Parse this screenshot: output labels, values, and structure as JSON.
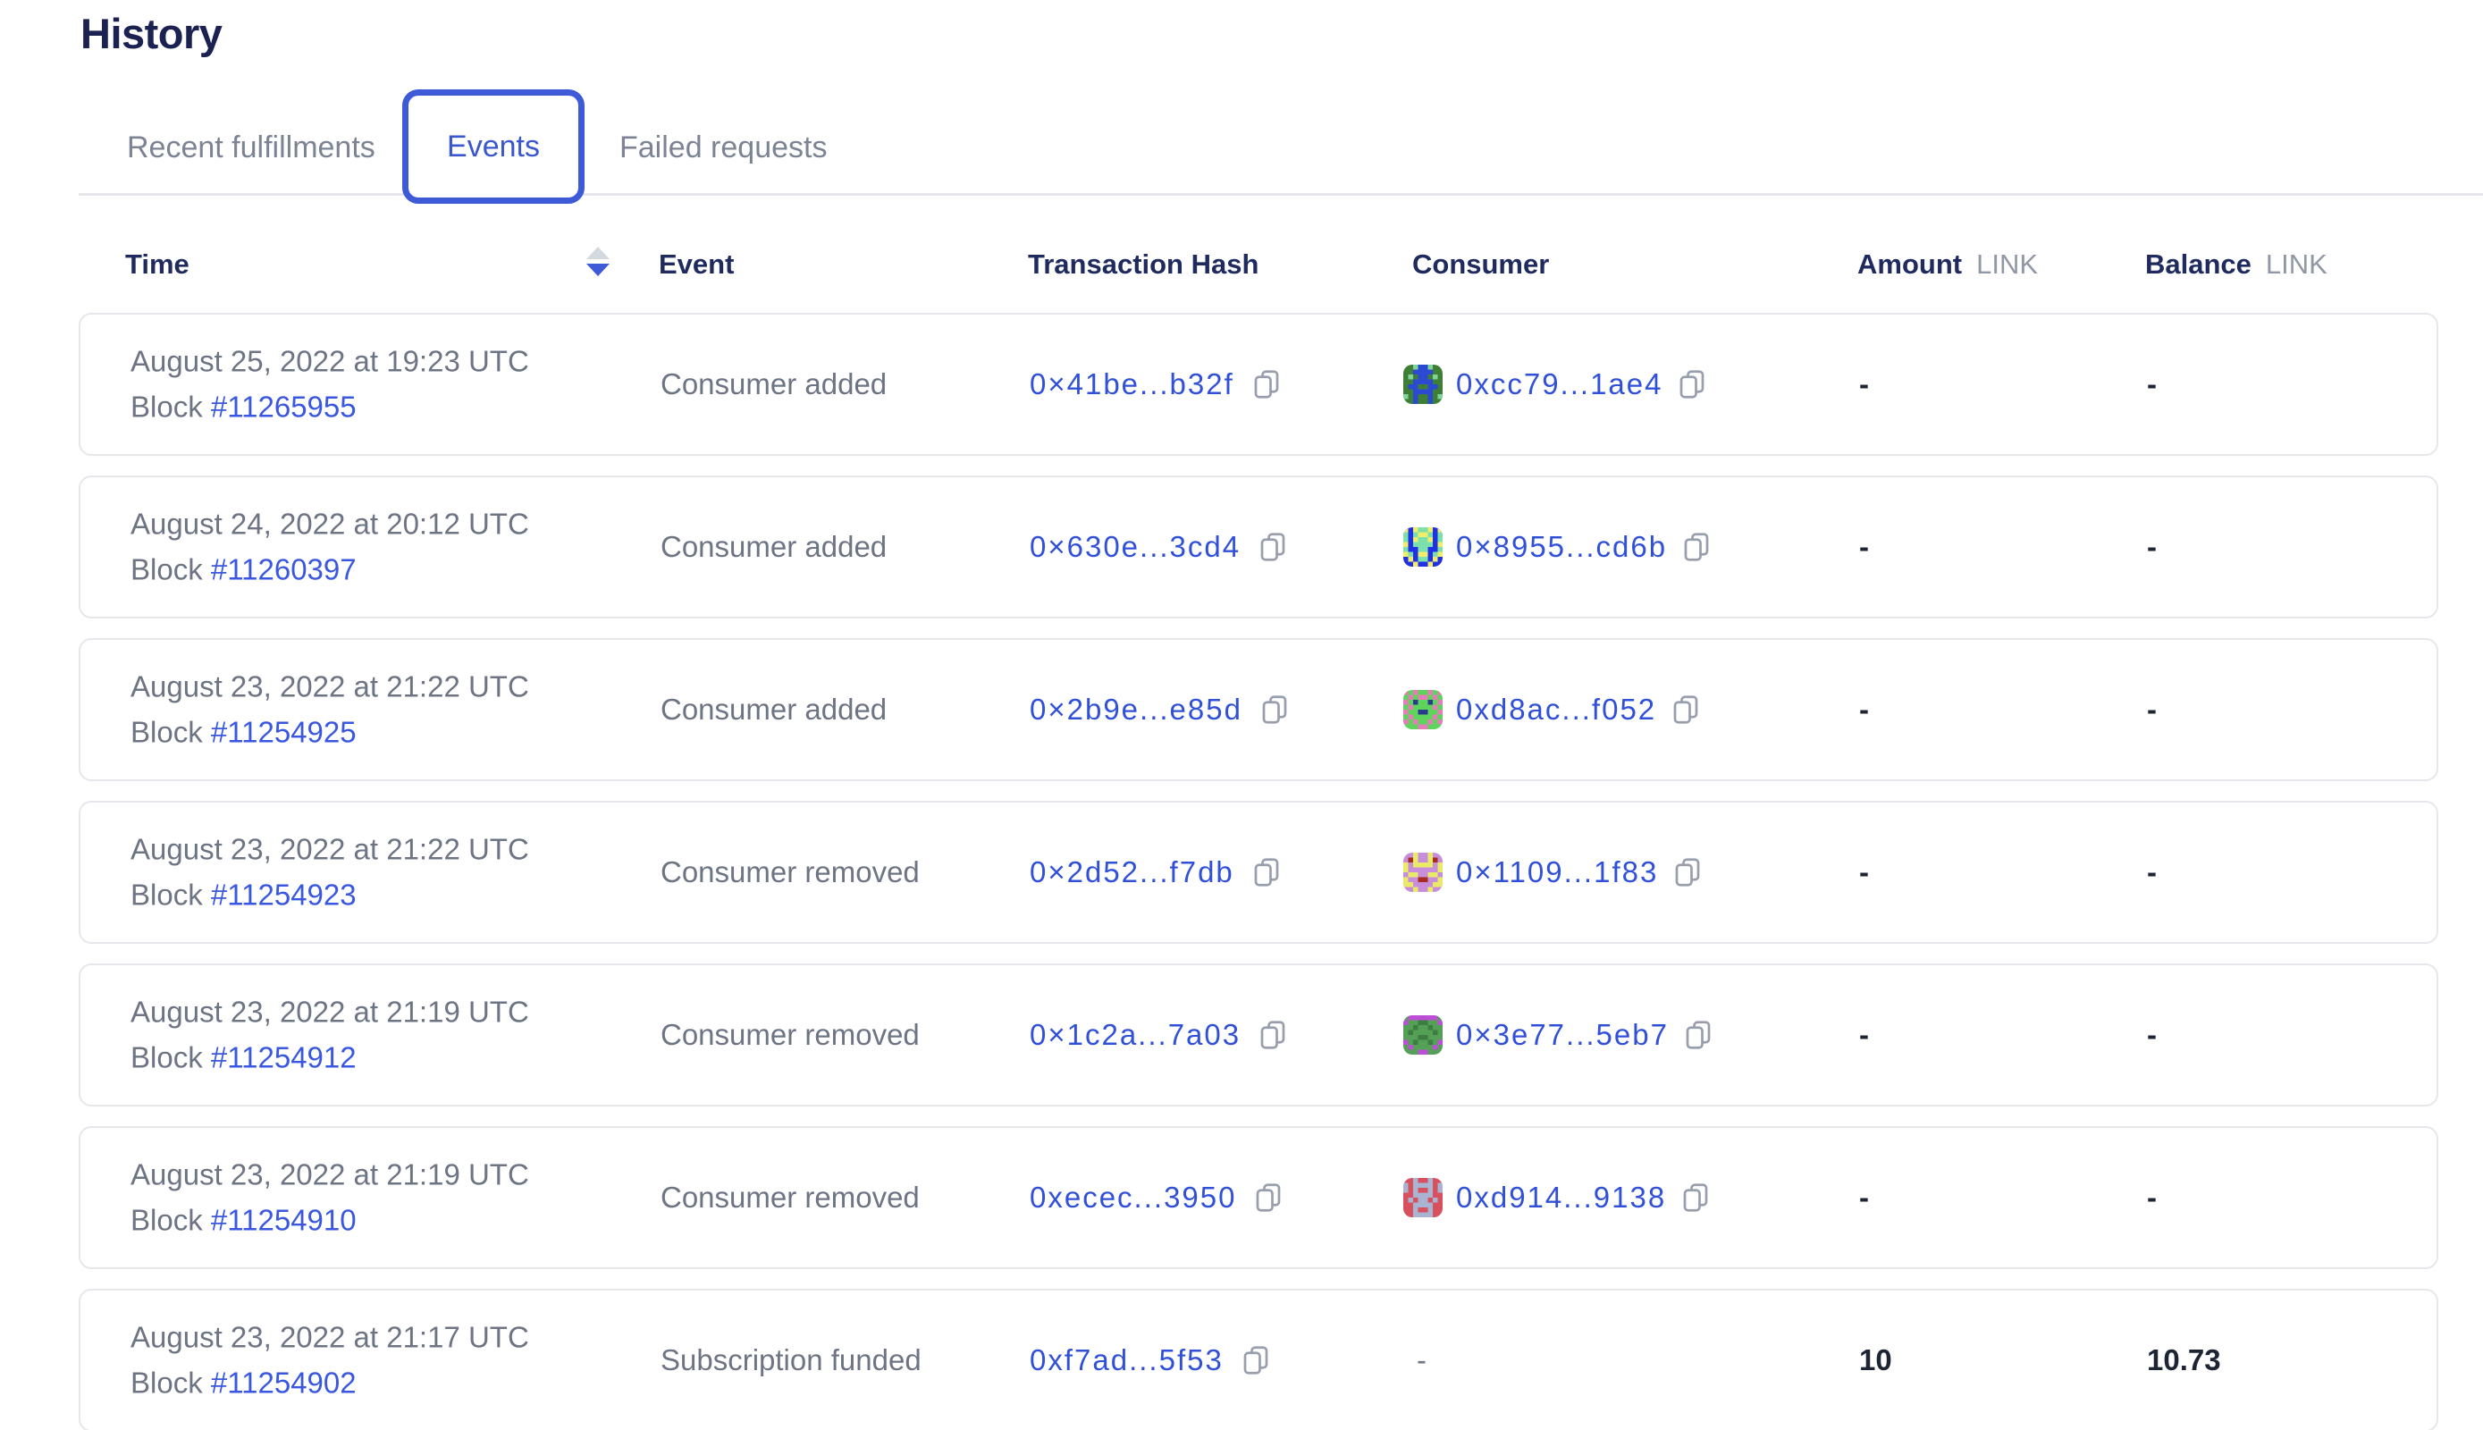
{
  "page": {
    "title": "History"
  },
  "tabs": [
    {
      "label": "Recent fulfillments",
      "active": false
    },
    {
      "label": "Events",
      "active": true
    },
    {
      "label": "Failed requests",
      "active": false
    }
  ],
  "colors": {
    "accent_blue": "#3d5bd7",
    "link_blue": "#3150d9",
    "heading_navy": "#1b2151",
    "body_gray": "#6d7483",
    "sort_active": "#3d5bd7",
    "sort_inactive": "#d4d8df"
  },
  "table": {
    "columns": {
      "time": "Time",
      "event": "Event",
      "hash": "Transaction Hash",
      "consumer": "Consumer",
      "amount": "Amount",
      "amount_unit": "LINK",
      "balance": "Balance",
      "balance_unit": "LINK"
    },
    "sort": {
      "column": "Time",
      "direction": "desc"
    },
    "rows": [
      {
        "date": "August 25, 2022 at 19:23 UTC",
        "block_label": "Block",
        "block": "#11265955",
        "event": "Consumer added",
        "tx_hash": "0×41be...b32f",
        "consumer": {
          "address": "0xcc79...1ae4",
          "avatar": {
            "bg": "#3e7e35",
            "colors": [
              "#2b49d2",
              "#7fd49b"
            ],
            "grid": [
              "00211200",
              "00111100",
              "02011020",
              "00111100",
              "01100110",
              "00111100",
              "20100102",
              "00100100"
            ]
          }
        },
        "amount": "-",
        "balance": "-"
      },
      {
        "date": "August 24, 2022 at 20:12 UTC",
        "block_label": "Block",
        "block": "#11260397",
        "event": "Consumer added",
        "tx_hash": "0×630e...3cd4",
        "consumer": {
          "address": "0×8955...cd6b",
          "avatar": {
            "bg": "#2130e6",
            "colors": [
              "#f0ee68",
              "#7ce0ad"
            ],
            "grid": [
              "10122101",
              "20211202",
              "20122102",
              "10222201",
              "20022002",
              "12011021",
              "01022010",
              "00100100"
            ]
          }
        },
        "amount": "-",
        "balance": "-"
      },
      {
        "date": "August 23, 2022 at 21:22 UTC",
        "block_label": "Block",
        "block": "#11254925",
        "event": "Consumer added",
        "tx_hash": "0×2b9e...e85d",
        "consumer": {
          "address": "0xd8ac...f052",
          "avatar": {
            "bg": "#5ed45c",
            "colors": [
              "#e77db8",
              "#2a3a8f"
            ],
            "grid": [
              "10100101",
              "01011010",
              "10200201",
              "01000010",
              "10022001",
              "01000010",
              "10100101",
              "00011000"
            ]
          }
        },
        "amount": "-",
        "balance": "-"
      },
      {
        "date": "August 23, 2022 at 21:22 UTC",
        "block_label": "Block",
        "block": "#11254923",
        "event": "Consumer removed",
        "tx_hash": "0×2d52...f7db",
        "consumer": {
          "address": "0×1109...1f83",
          "avatar": {
            "bg": "#c98edb",
            "colors": [
              "#e9eb67",
              "#a52c1f"
            ],
            "grid": [
              "00100100",
              "02100120",
              "10111101",
              "10000001",
              "01100110",
              "10022001",
              "11000011",
              "00100100"
            ]
          }
        },
        "amount": "-",
        "balance": "-"
      },
      {
        "date": "August 23, 2022 at 21:19 UTC",
        "block_label": "Block",
        "block": "#11254912",
        "event": "Consumer removed",
        "tx_hash": "0×1c2a...7a03",
        "consumer": {
          "address": "0×3e77...5eb7",
          "avatar": {
            "bg": "#55a057",
            "colors": [
              "#bc4fd6",
              "#3c7d42"
            ],
            "grid": [
              "01111110",
              "10022001",
              "00200200",
              "02000020",
              "00022000",
              "10200201",
              "01000010",
              "00011000"
            ]
          }
        },
        "amount": "-",
        "balance": "-"
      },
      {
        "date": "August 23, 2022 at 21:19 UTC",
        "block_label": "Block",
        "block": "#11254910",
        "event": "Consumer removed",
        "tx_hash": "0xecec...3950",
        "consumer": {
          "address": "0xd914...9138",
          "avatar": {
            "bg": "#d8505e",
            "colors": [
              "#a9b3d2",
              "#a9b3d2"
            ],
            "grid": [
              "00100100",
              "10111101",
              "10100101",
              "00111100",
              "01011010",
              "00111100",
              "00100100",
              "00111100"
            ]
          }
        },
        "amount": "-",
        "balance": "-"
      },
      {
        "date": "August 23, 2022 at 21:17 UTC",
        "block_label": "Block",
        "block": "#11254902",
        "event": "Subscription funded",
        "tx_hash": "0xf7ad...5f53",
        "consumer": {
          "placeholder": "-"
        },
        "amount": "10",
        "balance": "10.73"
      }
    ]
  }
}
